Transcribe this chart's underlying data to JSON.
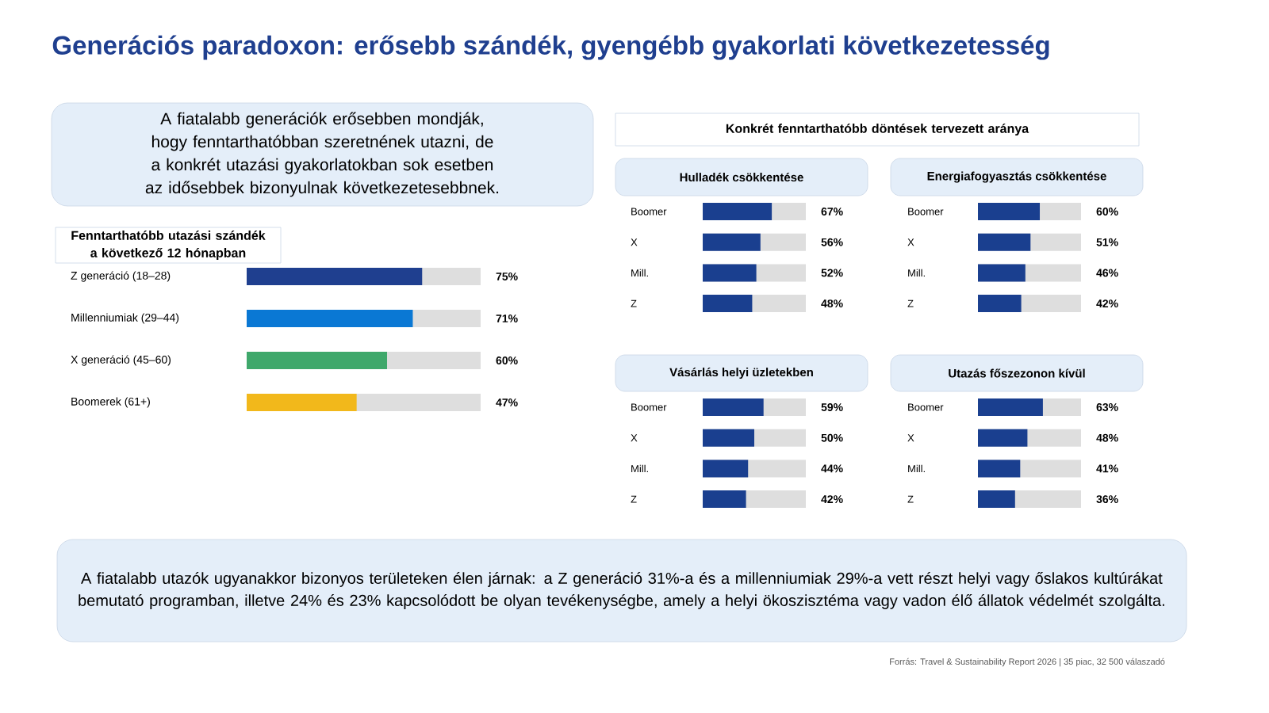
{
  "chart_data": [
    {
      "type": "other",
      "title": "Generációs paradoxon: erősebb szándék, gyengébb gyakorlati következetesség",
      "annotations": [
        "A fiatalabb generációk erősebben mondják, hogy fenntarthatóbban szeretnének utazni, de a konkrét utazási gyakorlatokban sok esetben az idősebbek bizonyulnak következetesebbnek.",
        "Konkrét fenntarthatóbb döntések tervezett aránya",
        "A fiatalabb utazók ugyanakkor bizonyos területeken élen járnak: a Z generáció 31%-a és a millenniumiak 29%-a vett részt helyi vagy őslakos kultúrákat bemutató programban, illetve 24% és 23% kapcsolódott be olyan tevékenységbe, amely a helyi ökoszisztéma vagy vadon élő állatok védelmét szolgálta.",
        "Forrás: Travel & Sustainability Report 2026 | 35 piac, 32 500 válaszadó"
      ]
    },
    {
      "type": "bar",
      "orientation": "horizontal",
      "title": "Fenntarthatóbb utazási szándék a következő 12 hónapban",
      "categories": [
        "Z generáció (18–28)",
        "Millenniumiak (29–44)",
        "X generáció (45–60)",
        "Boomerek (61+)"
      ],
      "values": [
        75,
        71,
        60,
        47
      ],
      "colors": [
        "#1f3f8f",
        "#0a78d4",
        "#3fa86b",
        "#f2b81b"
      ],
      "xlim": [
        0,
        100
      ],
      "value_labels": [
        "75%",
        "71%",
        "60%",
        "47%"
      ]
    },
    {
      "type": "bar",
      "orientation": "horizontal",
      "title": "Hulladék csökkentése",
      "categories": [
        "Boomer",
        "X",
        "Mill.",
        "Z"
      ],
      "values": [
        67,
        56,
        52,
        48
      ],
      "color": "#1a3f8f",
      "xlim": [
        0,
        100
      ],
      "value_labels": [
        "67%",
        "56%",
        "52%",
        "48%"
      ]
    },
    {
      "type": "bar",
      "orientation": "horizontal",
      "title": "Energiafogyasztás csökkentése",
      "categories": [
        "Boomer",
        "X",
        "Mill.",
        "Z"
      ],
      "values": [
        60,
        51,
        46,
        42
      ],
      "color": "#1a3f8f",
      "xlim": [
        0,
        100
      ],
      "value_labels": [
        "60%",
        "51%",
        "46%",
        "42%"
      ]
    },
    {
      "type": "bar",
      "orientation": "horizontal",
      "title": "Vásárlás helyi üzletekben",
      "categories": [
        "Boomer",
        "X",
        "Mill.",
        "Z"
      ],
      "values": [
        59,
        50,
        44,
        42
      ],
      "color": "#1a3f8f",
      "xlim": [
        0,
        100
      ],
      "value_labels": [
        "59%",
        "50%",
        "44%",
        "42%"
      ]
    },
    {
      "type": "bar",
      "orientation": "horizontal",
      "title": "Utazás főszezonon kívül",
      "categories": [
        "Boomer",
        "X",
        "Mill.",
        "Z"
      ],
      "values": [
        63,
        48,
        41,
        36
      ],
      "color": "#1a3f8f",
      "xlim": [
        0,
        100
      ],
      "value_labels": [
        "63%",
        "48%",
        "41%",
        "36%"
      ]
    }
  ]
}
